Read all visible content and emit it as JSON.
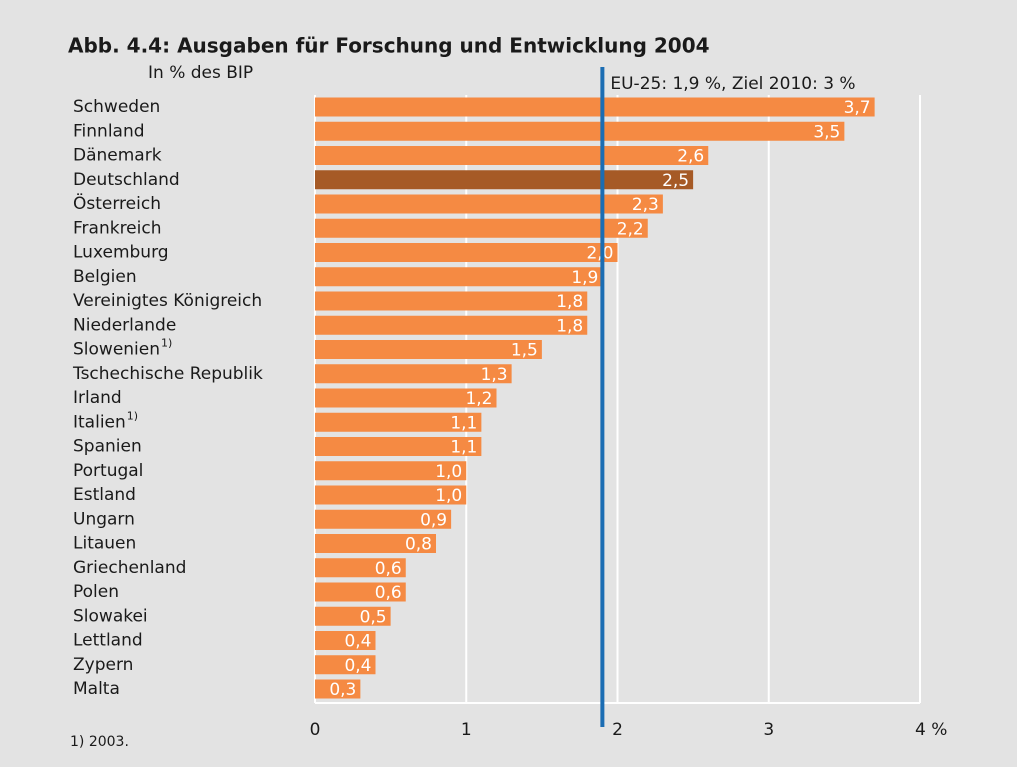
{
  "chart_data": {
    "type": "hbar",
    "title": "Abb. 4.4: Ausgaben für Forschung und Entwicklung 2004",
    "subtitle": "In % des BIP",
    "footnote": "1) 2003.",
    "categories": [
      "Schweden",
      "Finnland",
      "Dänemark",
      "Deutschland",
      "Österreich",
      "Frankreich",
      "Luxemburg",
      "Belgien",
      "Vereinigtes Königreich",
      "Niederlande",
      "Slowenien",
      "Tschechische Republik",
      "Irland",
      "Italien",
      "Spanien",
      "Portugal",
      "Estland",
      "Ungarn",
      "Litauen",
      "Griechenland",
      "Polen",
      "Slowakei",
      "Lettland",
      "Zypern",
      "Malta"
    ],
    "category_footnotes": [
      null,
      null,
      null,
      null,
      null,
      null,
      null,
      null,
      null,
      null,
      "1)",
      null,
      null,
      "1)",
      null,
      null,
      null,
      null,
      null,
      null,
      null,
      null,
      null,
      null,
      null
    ],
    "values": [
      3.7,
      3.5,
      2.6,
      2.5,
      2.3,
      2.2,
      2.0,
      1.9,
      1.8,
      1.8,
      1.5,
      1.3,
      1.2,
      1.1,
      1.1,
      1.0,
      1.0,
      0.9,
      0.8,
      0.6,
      0.6,
      0.5,
      0.4,
      0.4,
      0.3
    ],
    "value_labels": [
      "3,7",
      "3,5",
      "2,6",
      "2,5",
      "2,3",
      "2,2",
      "2,0",
      "1,9",
      "1,8",
      "1,8",
      "1,5",
      "1,3",
      "1,2",
      "1,1",
      "1,1",
      "1,0",
      "1,0",
      "0,9",
      "0,8",
      "0,6",
      "0,6",
      "0,5",
      "0,4",
      "0,4",
      "0,3"
    ],
    "colors": [
      "#f58a43",
      "#f58a43",
      "#f58a43",
      "#a65a26",
      "#f58a43",
      "#f58a43",
      "#f58a43",
      "#f58a43",
      "#f58a43",
      "#f58a43",
      "#f58a43",
      "#f58a43",
      "#f58a43",
      "#f58a43",
      "#f58a43",
      "#f58a43",
      "#f58a43",
      "#f58a43",
      "#f58a43",
      "#f58a43",
      "#f58a43",
      "#f58a43",
      "#f58a43",
      "#f58a43",
      "#f58a43"
    ],
    "xlim": [
      0,
      4
    ],
    "xticks": [
      0,
      1,
      2,
      3,
      {
        "value": 4,
        "label": "4 %"
      }
    ],
    "grid": true,
    "reference_line": {
      "value": 1.9,
      "label": "EU-25: 1,9 %, Ziel 2010: 3 %",
      "color": "#1b6db3"
    }
  }
}
